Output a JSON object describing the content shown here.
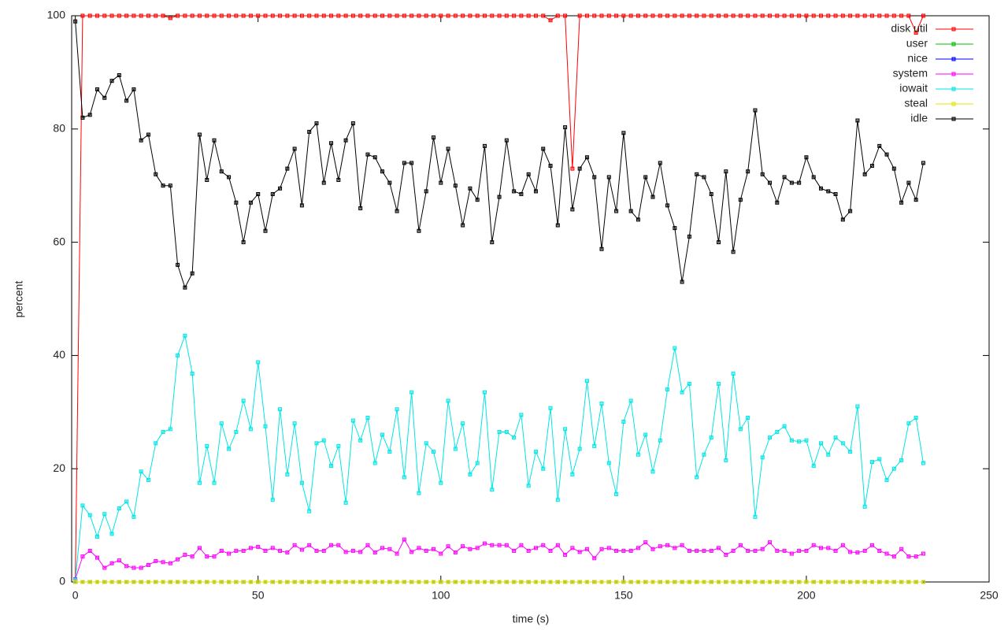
{
  "chart_data": {
    "type": "line",
    "xlabel": "time (s)",
    "ylabel": "percent",
    "xlim": [
      -1,
      250
    ],
    "ylim": [
      0,
      100
    ],
    "xticks": [
      0,
      50,
      100,
      150,
      200,
      250
    ],
    "yticks": [
      0,
      20,
      40,
      60,
      80,
      100
    ],
    "legend": "top-right",
    "markers": true,
    "x": [
      0,
      2,
      4,
      6,
      8,
      10,
      12,
      14,
      16,
      18,
      20,
      22,
      24,
      26,
      28,
      30,
      32,
      34,
      36,
      38,
      40,
      42,
      44,
      46,
      48,
      50,
      52,
      54,
      56,
      58,
      60,
      62,
      64,
      66,
      68,
      70,
      72,
      74,
      76,
      78,
      80,
      82,
      84,
      86,
      88,
      90,
      92,
      94,
      96,
      98,
      100,
      102,
      104,
      106,
      108,
      110,
      112,
      114,
      116,
      118,
      120,
      122,
      124,
      126,
      128,
      130,
      132,
      134,
      136,
      138,
      140,
      142,
      144,
      146,
      148,
      150,
      152,
      154,
      156,
      158,
      160,
      162,
      164,
      166,
      168,
      170,
      172,
      174,
      176,
      178,
      180,
      182,
      184,
      186,
      188,
      190,
      192,
      194,
      196,
      198,
      200,
      202,
      204,
      206,
      208,
      210,
      212,
      214,
      216,
      218,
      220,
      222,
      224,
      226,
      228,
      230,
      232
    ],
    "series": [
      {
        "name": "disk util",
        "color": "#ff0000",
        "values": [
          0,
          100,
          100,
          100,
          100,
          100,
          100,
          100,
          100,
          100,
          100,
          100,
          100,
          99.6,
          100,
          100,
          100,
          100,
          100,
          100,
          100,
          100,
          100,
          100,
          100,
          100,
          100,
          100,
          100,
          100,
          100,
          100,
          100,
          100,
          100,
          100,
          100,
          100,
          100,
          100,
          100,
          100,
          100,
          100,
          100,
          100,
          100,
          100,
          100,
          100,
          100,
          100,
          100,
          100,
          100,
          100,
          100,
          100,
          100,
          100,
          100,
          100,
          100,
          100,
          100,
          99.2,
          100,
          100,
          73,
          100,
          100,
          100,
          100,
          100,
          100,
          100,
          100,
          100,
          100,
          100,
          100,
          100,
          100,
          100,
          100,
          100,
          100,
          100,
          100,
          100,
          100,
          100,
          100,
          100,
          100,
          100,
          100,
          100,
          100,
          100,
          100,
          100,
          100,
          100,
          100,
          100,
          100,
          100,
          100,
          100,
          100,
          100,
          100,
          100,
          100,
          97,
          100
        ]
      },
      {
        "name": "user",
        "color": "#00c000",
        "values": [
          0,
          0,
          0,
          0,
          0,
          0,
          0,
          0,
          0,
          0,
          0,
          0,
          0,
          0,
          0,
          0,
          0,
          0,
          0,
          0,
          0,
          0,
          0,
          0,
          0,
          0,
          0,
          0,
          0,
          0,
          0,
          0,
          0,
          0,
          0,
          0,
          0,
          0,
          0,
          0,
          0,
          0,
          0,
          0,
          0,
          0,
          0,
          0,
          0,
          0,
          0,
          0,
          0,
          0,
          0,
          0,
          0,
          0,
          0,
          0,
          0,
          0,
          0,
          0,
          0,
          0,
          0,
          0,
          0,
          0,
          0,
          0,
          0,
          0,
          0,
          0,
          0,
          0,
          0,
          0,
          0,
          0,
          0,
          0,
          0,
          0,
          0,
          0,
          0,
          0,
          0,
          0,
          0,
          0,
          0,
          0,
          0,
          0,
          0,
          0,
          0,
          0,
          0,
          0,
          0,
          0,
          0,
          0,
          0,
          0,
          0,
          0,
          0,
          0,
          0,
          0,
          0
        ]
      },
      {
        "name": "nice",
        "color": "#0000ff",
        "values": [
          0,
          0,
          0,
          0,
          0,
          0,
          0,
          0,
          0,
          0,
          0,
          0,
          0,
          0,
          0,
          0,
          0,
          0,
          0,
          0,
          0,
          0,
          0,
          0,
          0,
          0,
          0,
          0,
          0,
          0,
          0,
          0,
          0,
          0,
          0,
          0,
          0,
          0,
          0,
          0,
          0,
          0,
          0,
          0,
          0,
          0,
          0,
          0,
          0,
          0,
          0,
          0,
          0,
          0,
          0,
          0,
          0,
          0,
          0,
          0,
          0,
          0,
          0,
          0,
          0,
          0,
          0,
          0,
          0,
          0,
          0,
          0,
          0,
          0,
          0,
          0,
          0,
          0,
          0,
          0,
          0,
          0,
          0,
          0,
          0,
          0,
          0,
          0,
          0,
          0,
          0,
          0,
          0,
          0,
          0,
          0,
          0,
          0,
          0,
          0,
          0,
          0,
          0,
          0,
          0,
          0,
          0,
          0,
          0,
          0,
          0,
          0,
          0,
          0,
          0,
          0,
          0
        ]
      },
      {
        "name": "system",
        "color": "#ff00ff",
        "values": [
          0.5,
          4.5,
          5.5,
          4.3,
          2.5,
          3.3,
          3.8,
          2.8,
          2.5,
          2.5,
          3,
          3.7,
          3.5,
          3.3,
          4,
          4.8,
          4.5,
          6,
          4.5,
          4.5,
          5.5,
          5,
          5.5,
          5.5,
          6,
          6.2,
          5.5,
          6,
          5.5,
          5.2,
          6.5,
          5.7,
          6.5,
          5.5,
          5.5,
          6.5,
          6.5,
          5.3,
          5.5,
          5.3,
          6.5,
          5.2,
          6,
          5.8,
          5,
          7.5,
          5.3,
          6,
          5.5,
          5.8,
          5,
          6.3,
          5.2,
          6.3,
          5.8,
          6,
          6.8,
          6.5,
          6.5,
          6.5,
          5.5,
          6.5,
          5.5,
          6,
          6.5,
          5.5,
          6.5,
          4.8,
          6,
          5.3,
          5.8,
          4.2,
          5.8,
          6,
          5.5,
          5.5,
          5.5,
          6,
          7,
          5.8,
          6.3,
          6.5,
          6,
          6.5,
          5.5,
          5.5,
          5.5,
          5.5,
          6,
          4.8,
          5.5,
          6.5,
          5.5,
          5.5,
          5.8,
          7,
          5.5,
          5.5,
          5,
          5.5,
          5.5,
          6.5,
          6,
          6,
          5.5,
          6.5,
          5.3,
          5.2,
          5.5,
          6.5,
          5.5,
          5,
          4.5,
          5.8,
          4.5,
          4.5,
          5
        ]
      },
      {
        "name": "iowait",
        "color": "#00e5e5",
        "values": [
          0.3,
          13.5,
          11.8,
          8,
          12,
          8.5,
          13,
          14.2,
          11.5,
          19.5,
          18,
          24.5,
          26.5,
          27,
          40,
          43.5,
          36.8,
          17.5,
          24,
          17.5,
          28,
          23.5,
          26.5,
          32,
          27,
          38.8,
          27.5,
          14.5,
          30.5,
          19,
          28,
          17.5,
          12.5,
          24.5,
          25,
          20.5,
          24,
          14,
          28.5,
          25,
          29,
          21,
          26,
          23,
          30.5,
          18.5,
          33.5,
          15.7,
          24.5,
          23,
          17.5,
          32,
          23.5,
          28,
          19,
          21,
          33.5,
          16.3,
          26.5,
          26.5,
          25.5,
          29.5,
          17,
          23,
          20,
          30.7,
          14.5,
          27,
          19,
          23.5,
          35.5,
          24,
          31.5,
          21,
          15.5,
          28.3,
          32,
          22.5,
          26,
          19.5,
          25,
          34,
          41.3,
          33.5,
          35,
          18.5,
          22.5,
          25.5,
          35,
          21.5,
          36.8,
          27,
          29,
          11.5,
          22,
          25.5,
          26.5,
          27.5,
          25,
          24.8,
          25,
          20.5,
          24.5,
          22.5,
          25.5,
          24.5,
          23,
          31,
          13.3,
          21.2,
          21.7,
          18,
          20,
          21.5,
          28,
          29,
          21
        ]
      },
      {
        "name": "steal",
        "color": "#e5e500",
        "values": [
          0,
          0,
          0,
          0,
          0,
          0,
          0,
          0,
          0,
          0,
          0,
          0,
          0,
          0,
          0,
          0,
          0,
          0,
          0,
          0,
          0,
          0,
          0,
          0,
          0,
          0,
          0,
          0,
          0,
          0,
          0,
          0,
          0,
          0,
          0,
          0,
          0,
          0,
          0,
          0,
          0,
          0,
          0,
          0,
          0,
          0,
          0,
          0,
          0,
          0,
          0,
          0,
          0,
          0,
          0,
          0,
          0,
          0,
          0,
          0,
          0,
          0,
          0,
          0,
          0,
          0,
          0,
          0,
          0,
          0,
          0,
          0,
          0,
          0,
          0,
          0,
          0,
          0,
          0,
          0,
          0,
          0,
          0,
          0,
          0,
          0,
          0,
          0,
          0,
          0,
          0,
          0,
          0,
          0,
          0,
          0,
          0,
          0,
          0,
          0,
          0,
          0,
          0,
          0,
          0,
          0,
          0,
          0,
          0,
          0,
          0,
          0,
          0,
          0,
          0,
          0,
          0
        ]
      },
      {
        "name": "idle",
        "color": "#000000",
        "values": [
          99,
          82,
          82.5,
          87,
          85.5,
          88.5,
          89.5,
          85,
          87,
          78,
          79,
          72,
          70,
          70,
          56,
          52,
          54.5,
          79,
          71,
          78,
          72.5,
          71.5,
          67,
          60,
          67,
          68.5,
          62,
          68.5,
          69.5,
          73,
          76.5,
          66.5,
          79.5,
          81,
          70.5,
          77.5,
          71,
          78,
          81,
          66,
          75.5,
          75,
          72.5,
          70.5,
          65.5,
          74,
          74,
          62,
          69,
          78.5,
          70.5,
          76.5,
          70,
          63,
          69.5,
          67.5,
          77,
          60,
          68,
          78,
          69,
          68.5,
          72,
          69,
          76.5,
          73.5,
          63,
          80.3,
          65.8,
          73,
          75,
          71.5,
          58.8,
          71.5,
          65.5,
          79.3,
          65.5,
          64,
          71.5,
          68,
          74,
          66.5,
          62.5,
          53,
          61,
          72,
          71.5,
          68.5,
          60,
          72.5,
          58.3,
          67.5,
          72.5,
          83.3,
          72,
          70.5,
          67,
          71.5,
          70.5,
          70.5,
          75,
          71.5,
          69.5,
          69,
          68.5,
          64,
          65.5,
          81.5,
          72,
          73.5,
          77,
          75.5,
          73,
          67,
          70.5,
          67.5,
          74
        ]
      }
    ]
  }
}
